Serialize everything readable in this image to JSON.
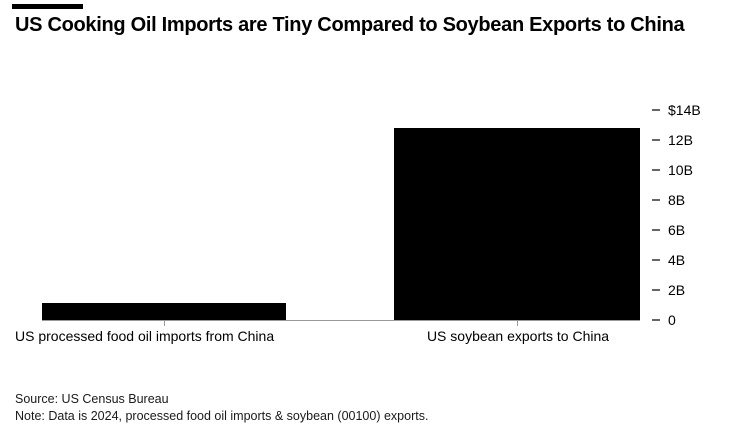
{
  "header": {
    "title": "US Cooking Oil Imports are Tiny Compared to Soybean Exports to China"
  },
  "chart_data": {
    "type": "bar",
    "title": "US Cooking Oil Imports are Tiny Compared to Soybean Exports to China",
    "categories": [
      "US processed food oil imports from China",
      "US soybean exports to China"
    ],
    "values": [
      1.1,
      12.8
    ],
    "unit": "USD billions",
    "bar_color": "#000000",
    "grid": false,
    "legend": false,
    "y_axis": {
      "side": "right",
      "ylim": [
        0,
        14
      ],
      "tick_values": [
        14,
        12,
        10,
        8,
        6,
        4,
        2,
        0
      ],
      "tick_labels": [
        "$14B",
        "12B",
        "10B",
        "8B",
        "6B",
        "4B",
        "2B",
        "0"
      ]
    }
  },
  "footer": {
    "source": "Source: US Census Bureau",
    "note": "Note: Data is 2024, processed food oil imports & soybean (00100) exports."
  },
  "colors": {
    "bar": "#000000",
    "axis_line": "#999999",
    "tick_dash": "#666666",
    "text": "#000000",
    "footer_text": "#1a1a1a"
  }
}
